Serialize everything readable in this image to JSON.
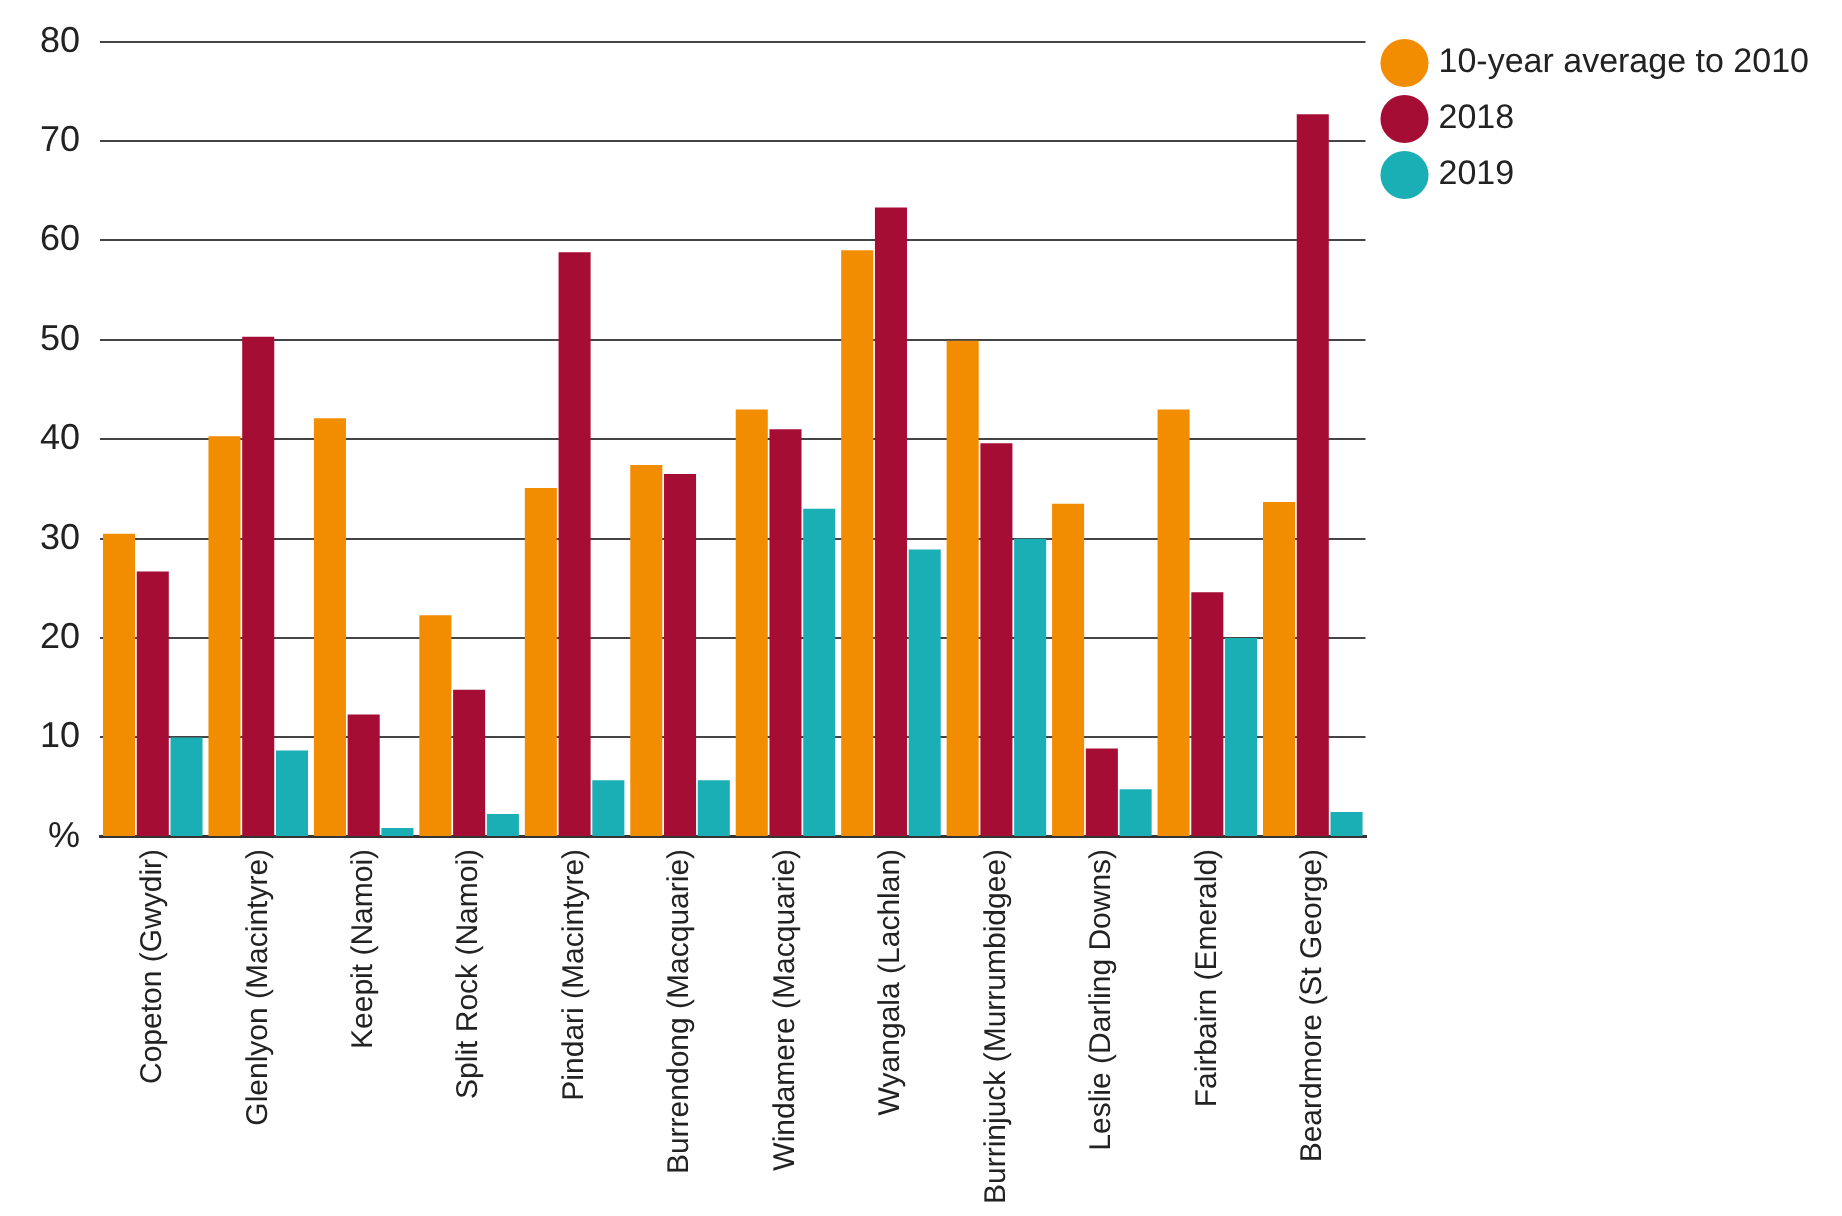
{
  "chart_data": {
    "type": "bar",
    "categories": [
      "Copeton (Gwydir)",
      "Glenlyon (Macintyre)",
      "Keepit (Namoi)",
      "Split Rock (Namoi)",
      "Pindari (Macintyre)",
      "Burrendong (Macquarie)",
      "Windamere (Macquarie)",
      "Wyangala (Lachlan)",
      "Burrinjuck (Murrumbidgee)",
      "Leslie (Darling Downs)",
      "Fairbairn (Emerald)",
      "Beardmore (St George)"
    ],
    "series": [
      {
        "name": "10-year average to 2010",
        "color": "#f28c00",
        "values": [
          30.5,
          40.3,
          42.1,
          22.3,
          35.1,
          37.4,
          43,
          59,
          49.9,
          33.5,
          43,
          33.7
        ]
      },
      {
        "name": "2018",
        "color": "#a50d35",
        "values": [
          26.7,
          50.3,
          12.3,
          14.8,
          58.8,
          36.5,
          41,
          63.3,
          39.6,
          8.9,
          24.6,
          72.7
        ]
      },
      {
        "name": "2019",
        "color": "#1aafb4",
        "values": [
          10,
          8.7,
          0.9,
          2.3,
          5.7,
          5.7,
          33,
          28.9,
          30,
          4.8,
          20,
          2.5
        ]
      }
    ],
    "ylim": [
      0,
      80
    ],
    "yticks": [
      {
        "value": 0,
        "label": "%"
      },
      10,
      20,
      30,
      40,
      50,
      60,
      70,
      80
    ],
    "grid": "y",
    "legend": "top right"
  }
}
